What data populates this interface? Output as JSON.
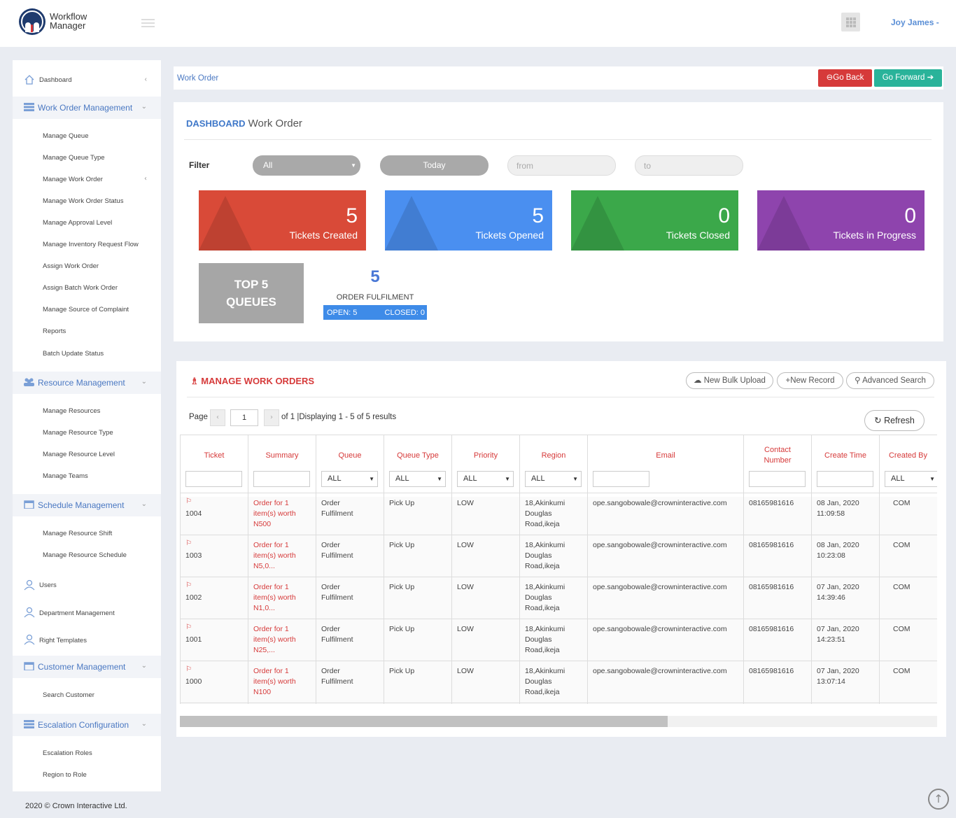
{
  "app": {
    "name_line1": "Workflow",
    "name_line2": "Manager",
    "user": "Joy James -"
  },
  "sidebar": {
    "dashboard": "Dashboard",
    "work_order_management": "Work Order Management",
    "work_order_items": [
      "Manage Queue",
      "Manage Queue Type",
      "Manage Work Order",
      "Manage Work Order Status",
      "Manage Approval Level",
      "Manage Inventory Request Flow",
      "Assign Work Order",
      "Assign Batch Work Order",
      "Manage Source of Complaint",
      "Reports",
      "Batch Update Status"
    ],
    "resource_management": "Resource Management",
    "resource_items": [
      "Manage Resources",
      "Manage Resource Type",
      "Manage Resource Level",
      "Manage Teams"
    ],
    "schedule_management": "Schedule Management",
    "schedule_items": [
      "Manage Resource Shift",
      "Manage Resource Schedule"
    ],
    "users": "Users",
    "department_management": "Department Management",
    "right_templates": "Right Templates",
    "customer_management": "Customer Management",
    "customer_items": [
      "Search Customer"
    ],
    "escalation_configuration": "Escalation Configuration",
    "escalation_items": [
      "Escalation Roles",
      "Region to Role"
    ]
  },
  "breadcrumb": {
    "label": "Work Order",
    "go_back": "Go Back",
    "go_forward": "Go Forward"
  },
  "dashboard": {
    "title_bold": "DASHBOARD",
    "title_rest": " Work Order",
    "filter_label": "Filter",
    "filter_select": "All",
    "today": "Today",
    "from_placeholder": "from",
    "to_placeholder": "to",
    "stats": [
      {
        "value": "5",
        "label": "Tickets Created",
        "color": "#d94a38"
      },
      {
        "value": "5",
        "label": "Tickets Opened",
        "color": "#4a8ff0"
      },
      {
        "value": "0",
        "label": "Tickets Closed",
        "color": "#3ba84a"
      },
      {
        "value": "0",
        "label": "Tickets in Progress",
        "color": "#8e44ad"
      }
    ],
    "top5_line1": "TOP 5",
    "top5_line2": "QUEUES",
    "queue": {
      "count": "5",
      "name": "ORDER FULFILMENT",
      "open": "OPEN: 5",
      "closed": "CLOSED: 0"
    }
  },
  "manage": {
    "title": "MANAGE WORK ORDERS",
    "new_bulk_upload": "New Bulk Upload",
    "new_record": "New Record",
    "advanced_search": "Advanced Search",
    "refresh": "Refresh",
    "page_label": "Page",
    "page_value": "1",
    "page_info": "of 1 |Displaying 1 - 5 of 5 results",
    "columns": [
      "Ticket",
      "Summary",
      "Queue",
      "Queue Type",
      "Priority",
      "Region",
      "Email",
      "Contact Number",
      "Create Time",
      "Created By"
    ],
    "filter_all": "ALL",
    "rows": [
      {
        "ticket": "1004",
        "summary": [
          "Order for 1",
          "item(s) worth",
          "N500"
        ],
        "queue": [
          "Order",
          "Fulfilment"
        ],
        "queue_type": "Pick Up",
        "priority": "LOW",
        "region": [
          "18,Akinkumi",
          "Douglas",
          "Road,ikeja"
        ],
        "email": "ope.sangobowale@crowninteractive.com",
        "contact": "08165981616",
        "time": [
          "08 Jan, 2020",
          "11:09:58"
        ],
        "created_by": "COM"
      },
      {
        "ticket": "1003",
        "summary": [
          "Order for 1",
          "item(s) worth",
          "N5,0..."
        ],
        "queue": [
          "Order",
          "Fulfilment"
        ],
        "queue_type": "Pick Up",
        "priority": "LOW",
        "region": [
          "18,Akinkumi",
          "Douglas",
          "Road,ikeja"
        ],
        "email": "ope.sangobowale@crowninteractive.com",
        "contact": "08165981616",
        "time": [
          "08 Jan, 2020",
          "10:23:08"
        ],
        "created_by": "COM"
      },
      {
        "ticket": "1002",
        "summary": [
          "Order for 1",
          "item(s) worth",
          "N1,0..."
        ],
        "queue": [
          "Order",
          "Fulfilment"
        ],
        "queue_type": "Pick Up",
        "priority": "LOW",
        "region": [
          "18,Akinkumi",
          "Douglas",
          "Road,ikeja"
        ],
        "email": "ope.sangobowale@crowninteractive.com",
        "contact": "08165981616",
        "time": [
          "07 Jan, 2020",
          "14:39:46"
        ],
        "created_by": "COM"
      },
      {
        "ticket": "1001",
        "summary": [
          "Order for 1",
          "item(s) worth",
          "N25,..."
        ],
        "queue": [
          "Order",
          "Fulfilment"
        ],
        "queue_type": "Pick Up",
        "priority": "LOW",
        "region": [
          "18,Akinkumi",
          "Douglas",
          "Road,ikeja"
        ],
        "email": "ope.sangobowale@crowninteractive.com",
        "contact": "08165981616",
        "time": [
          "07 Jan, 2020",
          "14:23:51"
        ],
        "created_by": "COM"
      },
      {
        "ticket": "1000",
        "summary": [
          "Order for 1",
          "item(s) worth",
          "N100"
        ],
        "queue": [
          "Order",
          "Fulfilment"
        ],
        "queue_type": "Pick Up",
        "priority": "LOW",
        "region": [
          "18,Akinkumi",
          "Douglas",
          "Road,ikeja"
        ],
        "email": "ope.sangobowale@crowninteractive.com",
        "contact": "08165981616",
        "time": [
          "07 Jan, 2020",
          "13:07:14"
        ],
        "created_by": "COM"
      }
    ]
  },
  "footer": "2020 © Crown Interactive Ltd."
}
